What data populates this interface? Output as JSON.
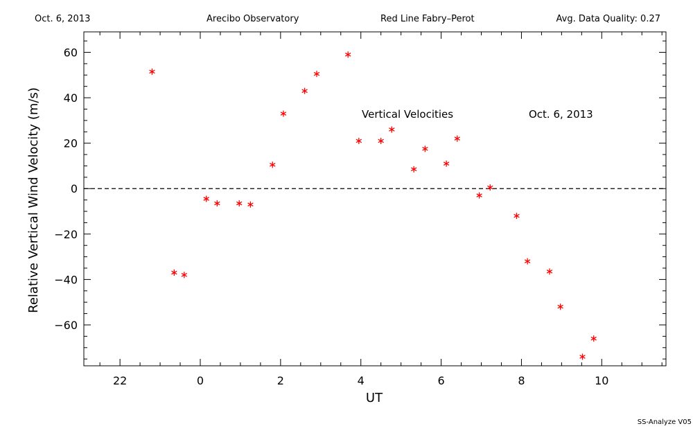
{
  "header": {
    "date": "Oct. 6, 2013",
    "site": "Arecibo Observatory",
    "instrument": "Red Line Fabry–Perot",
    "quality": "Avg. Data Quality: 0.27"
  },
  "footer": {
    "software": "SS-Analyze V05"
  },
  "chart_data": {
    "type": "scatter",
    "xlabel": "UT",
    "ylabel": "Relative Vertical Wind Velocity (m/s)",
    "xlim": [
      21.1,
      35.6
    ],
    "ylim": [
      -78,
      69
    ],
    "x_ticks": [
      {
        "value": 22,
        "label": "22"
      },
      {
        "value": 24,
        "label": "0"
      },
      {
        "value": 26,
        "label": "2"
      },
      {
        "value": 28,
        "label": "4"
      },
      {
        "value": 30,
        "label": "6"
      },
      {
        "value": 32,
        "label": "8"
      },
      {
        "value": 34,
        "label": "10"
      }
    ],
    "y_ticks": [
      {
        "value": 60,
        "label": "60"
      },
      {
        "value": 40,
        "label": "40"
      },
      {
        "value": 20,
        "label": "20"
      },
      {
        "value": 0,
        "label": "0"
      },
      {
        "value": -20,
        "label": "−20"
      },
      {
        "value": -40,
        "label": "−40"
      },
      {
        "value": -60,
        "label": "−60"
      }
    ],
    "reference_line": {
      "y": 0,
      "style": "dashed"
    },
    "annotations": [
      "Vertical Velocities",
      "Oct. 6, 2013"
    ],
    "marker": "asterisk",
    "marker_color": "#ff0000",
    "points": [
      {
        "x": 22.8,
        "y": 51.5
      },
      {
        "x": 23.35,
        "y": -37
      },
      {
        "x": 23.6,
        "y": -38
      },
      {
        "x": 24.15,
        "y": -4.5
      },
      {
        "x": 24.42,
        "y": -6.5
      },
      {
        "x": 24.97,
        "y": -6.5
      },
      {
        "x": 25.25,
        "y": -7
      },
      {
        "x": 25.8,
        "y": 10.5
      },
      {
        "x": 26.07,
        "y": 33
      },
      {
        "x": 26.6,
        "y": 43
      },
      {
        "x": 26.9,
        "y": 50.5
      },
      {
        "x": 27.68,
        "y": 59
      },
      {
        "x": 27.95,
        "y": 21
      },
      {
        "x": 28.5,
        "y": 21
      },
      {
        "x": 28.77,
        "y": 26
      },
      {
        "x": 29.32,
        "y": 8.5
      },
      {
        "x": 29.6,
        "y": 17.5
      },
      {
        "x": 30.13,
        "y": 11
      },
      {
        "x": 30.4,
        "y": 22
      },
      {
        "x": 30.95,
        "y": -3
      },
      {
        "x": 31.22,
        "y": 0.5
      },
      {
        "x": 31.88,
        "y": -12
      },
      {
        "x": 32.15,
        "y": -32
      },
      {
        "x": 32.7,
        "y": -36.5
      },
      {
        "x": 32.97,
        "y": -52
      },
      {
        "x": 33.52,
        "y": -74
      },
      {
        "x": 33.8,
        "y": -66
      }
    ]
  }
}
